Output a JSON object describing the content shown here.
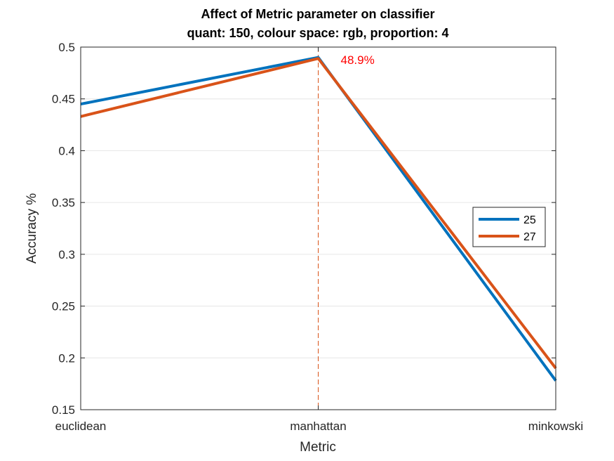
{
  "chart_data": {
    "type": "line",
    "title": "Affect of Metric parameter on classifier",
    "subtitle": "quant: 150, colour space: rgb, proportion: 4",
    "xlabel": "Metric",
    "ylabel": "Accuracy %",
    "categories": [
      "euclidean",
      "manhattan",
      "minkowski"
    ],
    "ylim": [
      0.15,
      0.5
    ],
    "yticks": [
      0.15,
      0.2,
      0.25,
      0.3,
      0.35,
      0.4,
      0.45,
      0.5
    ],
    "ytick_labels": [
      "0.15",
      "0.2",
      "0.25",
      "0.3",
      "0.35",
      "0.4",
      "0.45",
      "0.5"
    ],
    "grid": "horizontal",
    "legend_position": "right",
    "series": [
      {
        "name": "25",
        "values": [
          0.445,
          0.49,
          0.178
        ],
        "color": "#0072BD"
      },
      {
        "name": "27",
        "values": [
          0.433,
          0.489,
          0.19
        ],
        "color": "#D95319"
      }
    ],
    "annotation": {
      "text": "48.9%",
      "x": "manhattan",
      "color": "#FF0000"
    },
    "vline": {
      "x": "manhattan",
      "color": "#D95319",
      "style": "dashed"
    }
  }
}
